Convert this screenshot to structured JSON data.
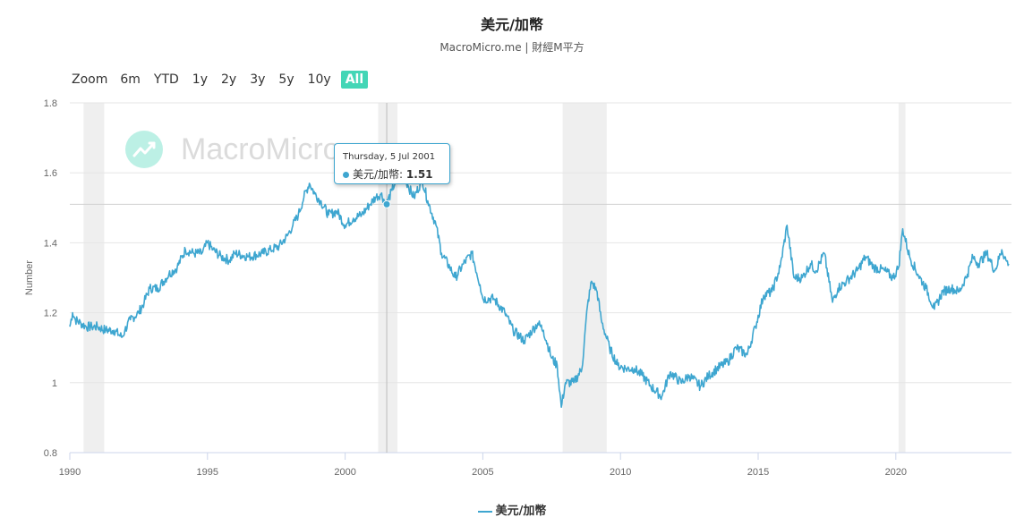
{
  "header": {
    "title": "美元/加幣",
    "subtitle": "MacroMicro.me | 財經M平方"
  },
  "zoom": {
    "label": "Zoom",
    "options": [
      "6m",
      "YTD",
      "1y",
      "2y",
      "3y",
      "5y",
      "10y",
      "All"
    ],
    "active": "All"
  },
  "watermark": {
    "text": "MacroMicro"
  },
  "tooltip": {
    "date": "Thursday, 5 Jul 2001",
    "series": "美元/加幣",
    "value": "1.51"
  },
  "legend": {
    "label": "美元/加幣"
  },
  "colors": {
    "series": "#3ea6d0",
    "accent": "#43d6b6",
    "recession_band": "#efefef"
  },
  "chart_data": {
    "type": "line",
    "ylabel": "Number",
    "ylim": [
      0.8,
      1.8
    ],
    "yticks": [
      0.8,
      1,
      1.2,
      1.4,
      1.6,
      1.8
    ],
    "ytick_labels": [
      "0.8",
      "1",
      "1.2",
      "1.4",
      "1.6",
      "1.8"
    ],
    "xlim": [
      1990.0,
      2024.2
    ],
    "xticks": [
      1990,
      1995,
      2000,
      2005,
      2010,
      2015,
      2020
    ],
    "xtick_labels": [
      "1990",
      "1995",
      "2000",
      "2005",
      "2010",
      "2015",
      "2020"
    ],
    "grid": true,
    "shaded_periods": [
      [
        1990.5,
        1991.25
      ],
      [
        2001.2,
        2001.9
      ],
      [
        2007.9,
        2009.5
      ],
      [
        2020.1,
        2020.35
      ]
    ],
    "crosshair_x": 2001.51,
    "series": [
      {
        "name": "美元/加幣",
        "points": [
          [
            1990.0,
            1.16
          ],
          [
            1990.1,
            1.2
          ],
          [
            1990.2,
            1.18
          ],
          [
            1990.4,
            1.17
          ],
          [
            1990.6,
            1.16
          ],
          [
            1990.8,
            1.16
          ],
          [
            1991.0,
            1.16
          ],
          [
            1991.3,
            1.15
          ],
          [
            1991.6,
            1.15
          ],
          [
            1991.9,
            1.13
          ],
          [
            1992.0,
            1.15
          ],
          [
            1992.2,
            1.18
          ],
          [
            1992.5,
            1.2
          ],
          [
            1992.7,
            1.23
          ],
          [
            1992.9,
            1.27
          ],
          [
            1993.2,
            1.27
          ],
          [
            1993.6,
            1.31
          ],
          [
            1993.9,
            1.33
          ],
          [
            1994.2,
            1.38
          ],
          [
            1994.5,
            1.37
          ],
          [
            1994.8,
            1.37
          ],
          [
            1995.0,
            1.4
          ],
          [
            1995.2,
            1.38
          ],
          [
            1995.5,
            1.36
          ],
          [
            1995.8,
            1.35
          ],
          [
            1996.0,
            1.37
          ],
          [
            1996.5,
            1.36
          ],
          [
            1997.0,
            1.37
          ],
          [
            1997.3,
            1.38
          ],
          [
            1997.6,
            1.39
          ],
          [
            1997.9,
            1.42
          ],
          [
            1998.1,
            1.45
          ],
          [
            1998.3,
            1.48
          ],
          [
            1998.5,
            1.53
          ],
          [
            1998.7,
            1.57
          ],
          [
            1998.9,
            1.54
          ],
          [
            1999.1,
            1.52
          ],
          [
            1999.4,
            1.48
          ],
          [
            1999.7,
            1.49
          ],
          [
            2000.0,
            1.45
          ],
          [
            2000.3,
            1.47
          ],
          [
            2000.6,
            1.48
          ],
          [
            2000.9,
            1.51
          ],
          [
            2001.1,
            1.53
          ],
          [
            2001.3,
            1.54
          ],
          [
            2001.5,
            1.51
          ],
          [
            2001.7,
            1.55
          ],
          [
            2001.9,
            1.59
          ],
          [
            2002.1,
            1.6
          ],
          [
            2002.3,
            1.56
          ],
          [
            2002.5,
            1.53
          ],
          [
            2002.8,
            1.58
          ],
          [
            2003.0,
            1.52
          ],
          [
            2003.3,
            1.45
          ],
          [
            2003.5,
            1.37
          ],
          [
            2003.8,
            1.33
          ],
          [
            2004.0,
            1.3
          ],
          [
            2004.3,
            1.34
          ],
          [
            2004.6,
            1.37
          ],
          [
            2004.9,
            1.28
          ],
          [
            2005.0,
            1.24
          ],
          [
            2005.4,
            1.24
          ],
          [
            2005.8,
            1.2
          ],
          [
            2006.1,
            1.15
          ],
          [
            2006.5,
            1.12
          ],
          [
            2006.8,
            1.15
          ],
          [
            2007.0,
            1.17
          ],
          [
            2007.2,
            1.15
          ],
          [
            2007.5,
            1.07
          ],
          [
            2007.7,
            1.05
          ],
          [
            2007.85,
            0.93
          ],
          [
            2008.0,
            1.0
          ],
          [
            2008.3,
            1.0
          ],
          [
            2008.6,
            1.04
          ],
          [
            2008.8,
            1.22
          ],
          [
            2008.95,
            1.29
          ],
          [
            2009.15,
            1.26
          ],
          [
            2009.3,
            1.18
          ],
          [
            2009.6,
            1.1
          ],
          [
            2009.9,
            1.05
          ],
          [
            2010.2,
            1.04
          ],
          [
            2010.5,
            1.04
          ],
          [
            2010.8,
            1.02
          ],
          [
            2011.1,
            0.99
          ],
          [
            2011.5,
            0.96
          ],
          [
            2011.8,
            1.03
          ],
          [
            2012.2,
            1.0
          ],
          [
            2012.5,
            1.02
          ],
          [
            2012.9,
            0.99
          ],
          [
            2013.2,
            1.02
          ],
          [
            2013.5,
            1.04
          ],
          [
            2013.9,
            1.06
          ],
          [
            2014.2,
            1.1
          ],
          [
            2014.6,
            1.08
          ],
          [
            2014.9,
            1.16
          ],
          [
            2015.2,
            1.25
          ],
          [
            2015.5,
            1.26
          ],
          [
            2015.8,
            1.33
          ],
          [
            2016.05,
            1.45
          ],
          [
            2016.3,
            1.3
          ],
          [
            2016.6,
            1.3
          ],
          [
            2016.9,
            1.34
          ],
          [
            2017.1,
            1.32
          ],
          [
            2017.4,
            1.37
          ],
          [
            2017.7,
            1.23
          ],
          [
            2017.9,
            1.27
          ],
          [
            2018.2,
            1.29
          ],
          [
            2018.6,
            1.32
          ],
          [
            2018.9,
            1.36
          ],
          [
            2019.2,
            1.33
          ],
          [
            2019.6,
            1.32
          ],
          [
            2019.9,
            1.3
          ],
          [
            2020.1,
            1.33
          ],
          [
            2020.25,
            1.44
          ],
          [
            2020.5,
            1.36
          ],
          [
            2020.8,
            1.31
          ],
          [
            2021.1,
            1.27
          ],
          [
            2021.4,
            1.21
          ],
          [
            2021.7,
            1.26
          ],
          [
            2022.0,
            1.27
          ],
          [
            2022.3,
            1.26
          ],
          [
            2022.6,
            1.31
          ],
          [
            2022.8,
            1.36
          ],
          [
            2023.0,
            1.34
          ],
          [
            2023.3,
            1.37
          ],
          [
            2023.6,
            1.32
          ],
          [
            2023.85,
            1.38
          ],
          [
            2024.0,
            1.35
          ],
          [
            2024.1,
            1.34
          ]
        ]
      }
    ]
  }
}
